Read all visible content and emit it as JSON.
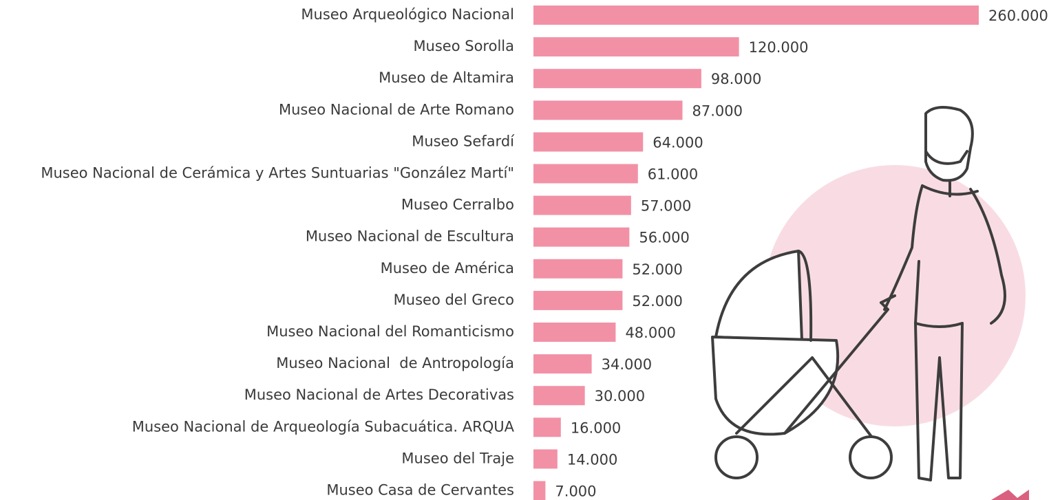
{
  "chart_data": {
    "type": "barh",
    "color": "#f291a5",
    "categories": [
      "Museo Arqueológico Nacional",
      "Museo Sorolla",
      "Museo de Altamira",
      "Museo Nacional de Arte Romano",
      "Museo Sefardí",
      "Museo Nacional de Cerámica y Artes Suntuarias \"González Martí\"",
      "Museo Cerralbo",
      "Museo Nacional de Escultura",
      "Museo de América",
      "Museo del Greco",
      "Museo Nacional del Romanticismo",
      "Museo Nacional  de Antropología",
      "Museo Nacional de Artes Decorativas",
      "Museo Nacional de Arqueología Subacuática. ARQUA",
      "Museo del Traje",
      "Museo Casa de Cervantes"
    ],
    "values": [
      260000,
      120000,
      98000,
      87000,
      64000,
      61000,
      57000,
      56000,
      52000,
      52000,
      48000,
      34000,
      30000,
      16000,
      14000,
      7000
    ],
    "value_labels": [
      "260.000",
      "120.000",
      "98.000",
      "87.000",
      "64.000",
      "61.000",
      "57.000",
      "56.000",
      "52.000",
      "52.000",
      "48.000",
      "34.000",
      "30.000",
      "16.000",
      "14.000",
      "7.000"
    ]
  }
}
